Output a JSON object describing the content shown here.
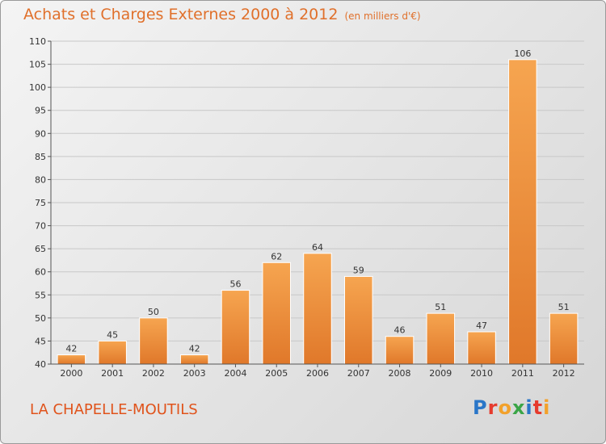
{
  "title": "Achats et Charges Externes 2000 à 2012",
  "unit": "(en milliers d'€)",
  "place": "LA CHAPELLE-MOUTILS",
  "logo": {
    "letters": [
      "P",
      "r",
      "o",
      "x",
      "i",
      "t",
      "i"
    ],
    "colors": [
      "#2a76c8",
      "#e63b2e",
      "#f2a12b",
      "#3aa547",
      "#2a76c8",
      "#e63b2e",
      "#f2a12b"
    ]
  },
  "colors": {
    "bar_light": "#f6a550",
    "bar_dark": "#e0782a",
    "title": "#e0702b"
  },
  "chart_data": {
    "type": "bar",
    "categories": [
      "2000",
      "2001",
      "2002",
      "2003",
      "2004",
      "2005",
      "2006",
      "2007",
      "2008",
      "2009",
      "2010",
      "2011",
      "2012"
    ],
    "values": [
      42,
      45,
      50,
      42,
      56,
      62,
      64,
      59,
      46,
      51,
      47,
      106,
      51
    ],
    "ylim": [
      40,
      110
    ],
    "yticks": [
      40,
      45,
      50,
      55,
      60,
      65,
      70,
      75,
      80,
      85,
      90,
      95,
      100,
      105,
      110
    ],
    "grid": true,
    "xlabel": "",
    "ylabel": ""
  }
}
